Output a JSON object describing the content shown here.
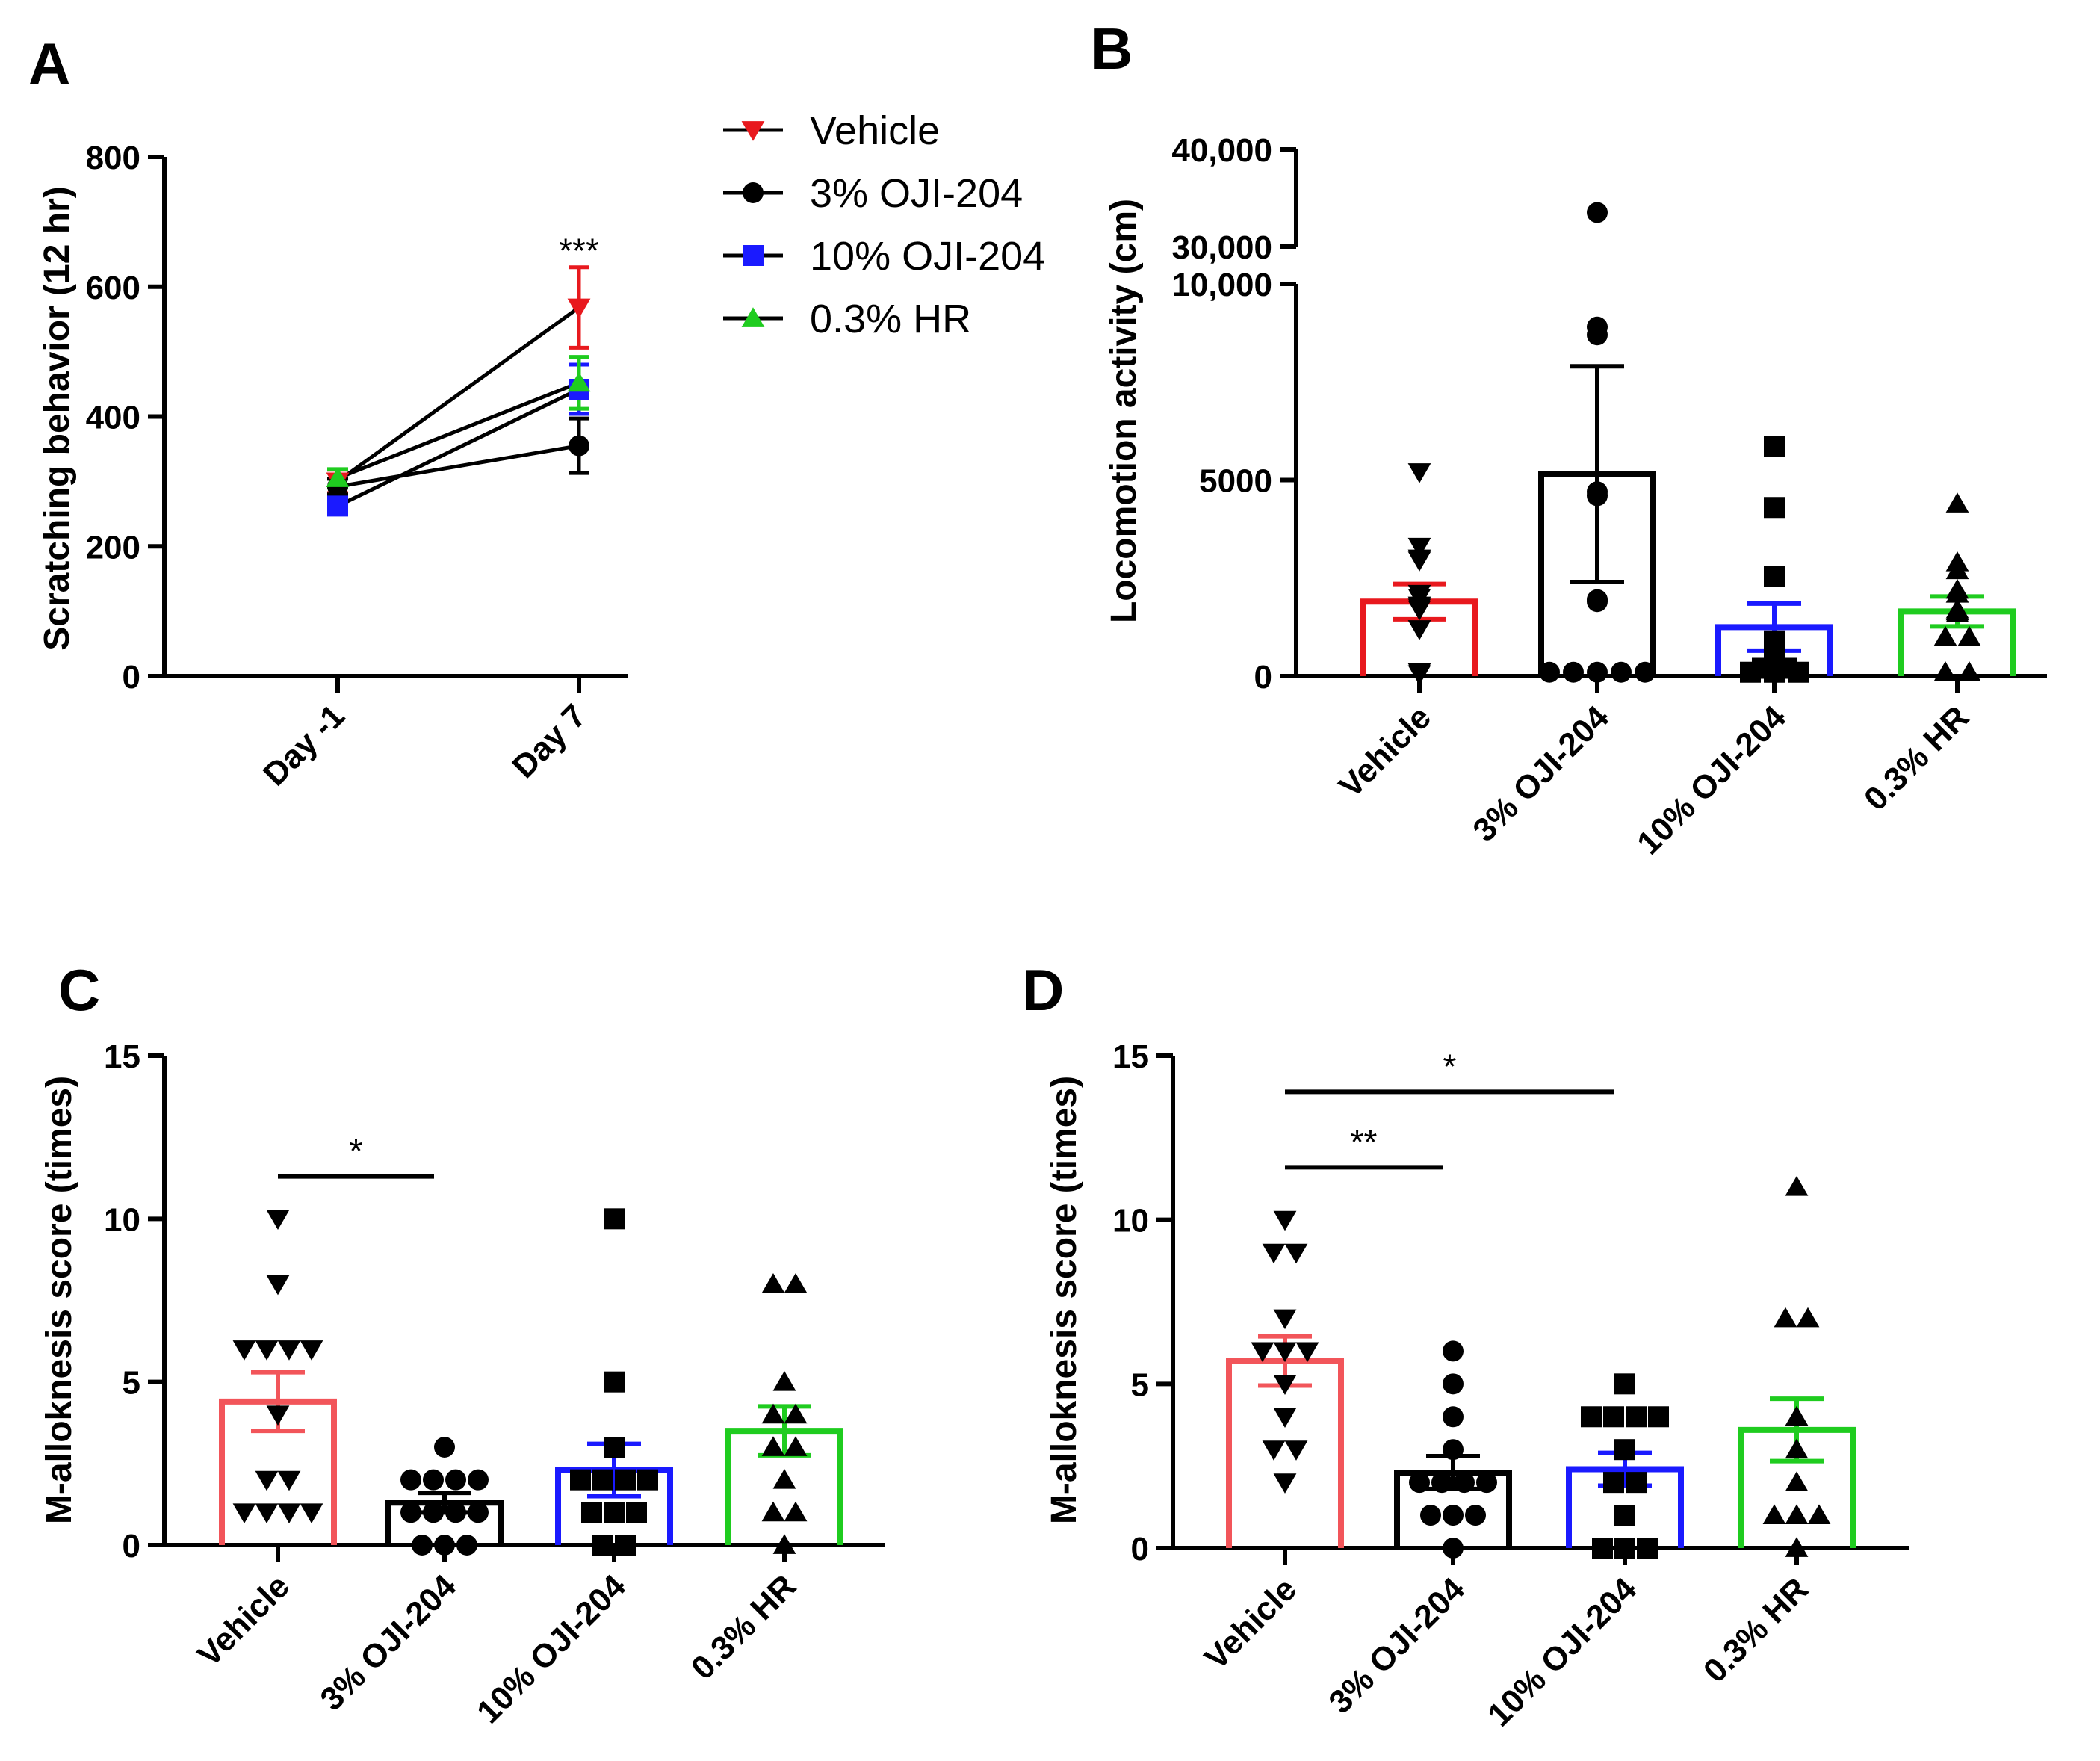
{
  "chart_data": [
    {
      "id": "A",
      "type": "line",
      "panel_label": "A",
      "ylabel": "Scratching behavior (12 hr)",
      "xlabel": "",
      "categories": [
        "Day -1",
        "Day 7"
      ],
      "ylim": [
        0,
        800
      ],
      "yticks": [
        0,
        200,
        400,
        600,
        800
      ],
      "series": [
        {
          "name": "Vehicle",
          "color": "#e8191e",
          "marker": "triangle-down",
          "values": [
            300,
            568
          ],
          "sem": [
            18,
            62
          ]
        },
        {
          "name": "3% OJI-204",
          "color": "#000000",
          "marker": "circle",
          "values": [
            292,
            355
          ],
          "sem": [
            12,
            42
          ]
        },
        {
          "name": "10% OJI-204",
          "color": "#1a1aff",
          "marker": "square",
          "values": [
            262,
            442
          ],
          "sem": [
            12,
            38
          ]
        },
        {
          "name": "0.3% HR",
          "color": "#1fcc1f",
          "marker": "triangle-up",
          "values": [
            305,
            452
          ],
          "sem": [
            14,
            40
          ]
        }
      ],
      "significance": [
        {
          "label": "***",
          "category": "Day 7"
        }
      ]
    },
    {
      "id": "B",
      "type": "bar",
      "panel_label": "B",
      "ylabel": "Locomotion activity (cm)",
      "xlabel": "",
      "categories": [
        "Vehicle",
        "3% OJI-204",
        "10% OJI-204",
        "0.3% HR"
      ],
      "ylim": [
        0,
        40000
      ],
      "axis_break": [
        10000,
        30000
      ],
      "ytick_labels": [
        "0",
        "5000",
        "10,000",
        "30,000",
        "40,000"
      ],
      "yticks": [
        0,
        5000,
        10000,
        30000,
        40000
      ],
      "groups": [
        {
          "name": "Vehicle",
          "color": "#e8191e",
          "marker": "triangle-down",
          "mean": 1900,
          "sem": 450,
          "points": [
            5200,
            3300,
            3000,
            2950,
            2000,
            2100,
            1800,
            1750,
            1700,
            1200,
            100,
            50
          ]
        },
        {
          "name": "3% OJI-204",
          "color": "#000000",
          "marker": "circle",
          "mean": 5150,
          "sem": 2750,
          "points": [
            33500,
            8900,
            8700,
            4700,
            4600,
            1950,
            1900,
            100,
            100,
            100,
            100,
            100
          ]
        },
        {
          "name": "10% OJI-204",
          "color": "#1a1aff",
          "marker": "square",
          "mean": 1250,
          "sem": 600,
          "points": [
            5850,
            4300,
            2550,
            900,
            700,
            500,
            300,
            200,
            200,
            100,
            100,
            100
          ]
        },
        {
          "name": "0.3% HR",
          "color": "#1fcc1f",
          "marker": "triangle-up",
          "mean": 1650,
          "sem": 380,
          "points": [
            4400,
            2900,
            2700,
            2200,
            2100,
            1700,
            1650,
            1600,
            1000,
            1000,
            100,
            100
          ]
        }
      ]
    },
    {
      "id": "C",
      "type": "bar",
      "panel_label": "C",
      "ylabel": "M-alloknesis score (times)",
      "xlabel": "",
      "categories": [
        "Vehicle",
        "3% OJI-204",
        "10% OJI-204",
        "0.3% HR"
      ],
      "ylim": [
        0,
        15
      ],
      "yticks": [
        0,
        5,
        10,
        15
      ],
      "groups": [
        {
          "name": "Vehicle",
          "color": "#f2555a",
          "marker": "triangle-down",
          "mean": 4.4,
          "sem": 0.9,
          "points": [
            10,
            8,
            6,
            6,
            6,
            6,
            4,
            2,
            2,
            1,
            1,
            1,
            1
          ]
        },
        {
          "name": "3% OJI-204",
          "color": "#000000",
          "marker": "circle",
          "mean": 1.3,
          "sem": 0.3,
          "points": [
            3,
            2,
            2,
            2,
            2,
            1,
            1,
            1,
            1,
            0,
            0,
            0
          ]
        },
        {
          "name": "10% OJI-204",
          "color": "#1a1aff",
          "marker": "square",
          "mean": 2.3,
          "sem": 0.8,
          "points": [
            10,
            5,
            3,
            2,
            2,
            2,
            2,
            1,
            1,
            1,
            0,
            0
          ]
        },
        {
          "name": "0.3% HR",
          "color": "#1fcc1f",
          "marker": "triangle-up",
          "mean": 3.5,
          "sem": 0.75,
          "points": [
            8,
            8,
            5,
            4,
            4,
            3,
            3,
            2,
            1,
            1,
            0
          ]
        }
      ],
      "significance": [
        {
          "label": "*",
          "from": 0,
          "to": 1,
          "y": 11.3
        }
      ]
    },
    {
      "id": "D",
      "type": "bar",
      "panel_label": "D",
      "ylabel": "M-alloknesis score (times)",
      "xlabel": "",
      "categories": [
        "Vehicle",
        "3% OJI-204",
        "10% OJI-204",
        "0.3% HR"
      ],
      "ylim": [
        0,
        15
      ],
      "yticks": [
        0,
        5,
        10,
        15
      ],
      "groups": [
        {
          "name": "Vehicle",
          "color": "#f2555a",
          "marker": "triangle-down",
          "mean": 5.7,
          "sem": 0.75,
          "points": [
            10,
            9,
            9,
            7,
            6,
            6,
            6,
            5,
            4,
            3,
            3,
            2
          ]
        },
        {
          "name": "3% OJI-204",
          "color": "#000000",
          "marker": "circle",
          "mean": 2.3,
          "sem": 0.5,
          "points": [
            6,
            5,
            4,
            3,
            2,
            2,
            2,
            2,
            1,
            1,
            1,
            0
          ]
        },
        {
          "name": "10% OJI-204",
          "color": "#1a1aff",
          "marker": "square",
          "mean": 2.4,
          "sem": 0.5,
          "points": [
            5,
            4,
            4,
            4,
            4,
            3,
            2,
            2,
            1,
            0,
            0,
            0
          ]
        },
        {
          "name": "0.3% HR",
          "color": "#1fcc1f",
          "marker": "triangle-up",
          "mean": 3.6,
          "sem": 0.95,
          "points": [
            11,
            7,
            7,
            4,
            3,
            2,
            1,
            1,
            1,
            0
          ]
        }
      ],
      "significance": [
        {
          "label": "**",
          "from": 0,
          "to": 1,
          "y": 11.6
        },
        {
          "label": "*",
          "from": 0,
          "to": 2,
          "y": 13.9
        }
      ]
    }
  ]
}
